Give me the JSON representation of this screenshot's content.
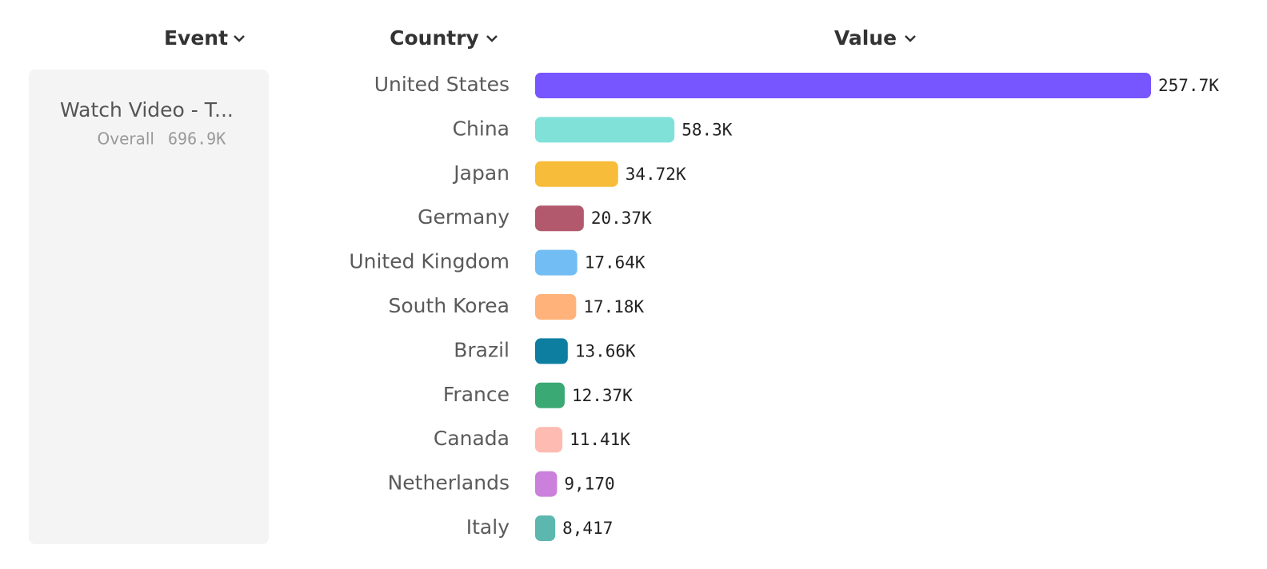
{
  "headers": {
    "event": "Event",
    "country": "Country",
    "value": "Value"
  },
  "event_panel": {
    "name": "Watch Video - T...",
    "overall_label": "Overall",
    "overall_value": "696.9K"
  },
  "chart_data": {
    "type": "bar",
    "categories": [
      "United States",
      "China",
      "Japan",
      "Germany",
      "United Kingdom",
      "South Korea",
      "Brazil",
      "France",
      "Canada",
      "Netherlands",
      "Italy"
    ],
    "values": [
      257700,
      58300,
      34720,
      20370,
      17640,
      17180,
      13660,
      12370,
      11410,
      9170,
      8417
    ],
    "value_labels": [
      "257.7K",
      "58.3K",
      "34.72K",
      "20.37K",
      "17.64K",
      "17.18K",
      "13.66K",
      "12.37K",
      "11.41K",
      "9,170",
      "8,417"
    ],
    "colors": [
      "#7856ff",
      "#80e1d9",
      "#f8bc3b",
      "#b2596e",
      "#72bef4",
      "#ffb27a",
      "#0d7ea0",
      "#3ba974",
      "#febbb2",
      "#cb80dc",
      "#5cb7af"
    ]
  }
}
